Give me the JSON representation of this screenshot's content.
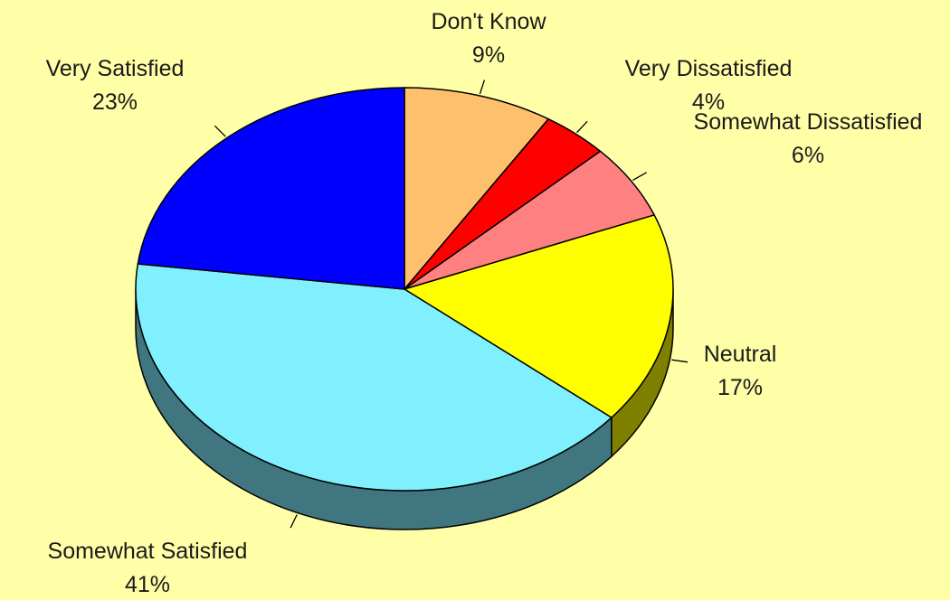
{
  "chart_data": {
    "type": "pie",
    "style": "3d",
    "title": "",
    "slices": [
      {
        "label": "Don't Know",
        "pct_label": "9%",
        "value": 9,
        "color": "#ffc06e",
        "side_color": "#7f6037"
      },
      {
        "label": "Very Dissatisfied",
        "pct_label": "4%",
        "value": 4,
        "color": "#ff0000",
        "side_color": "#7f0000"
      },
      {
        "label": "Somewhat Dissatisfied",
        "pct_label": "6%",
        "value": 6,
        "color": "#ff8080",
        "side_color": "#7f4040"
      },
      {
        "label": "Neutral",
        "pct_label": "17%",
        "value": 17,
        "color": "#ffff00",
        "side_color": "#7f7f00"
      },
      {
        "label": "Somewhat Satisfied",
        "pct_label": "41%",
        "value": 41,
        "color": "#80f0ff",
        "side_color": "#40767f"
      },
      {
        "label": "Very Satisfied",
        "pct_label": "23%",
        "value": 23,
        "color": "#0000ff",
        "side_color": "#00007f"
      }
    ],
    "background": "#ffffa8",
    "legend": "none"
  }
}
